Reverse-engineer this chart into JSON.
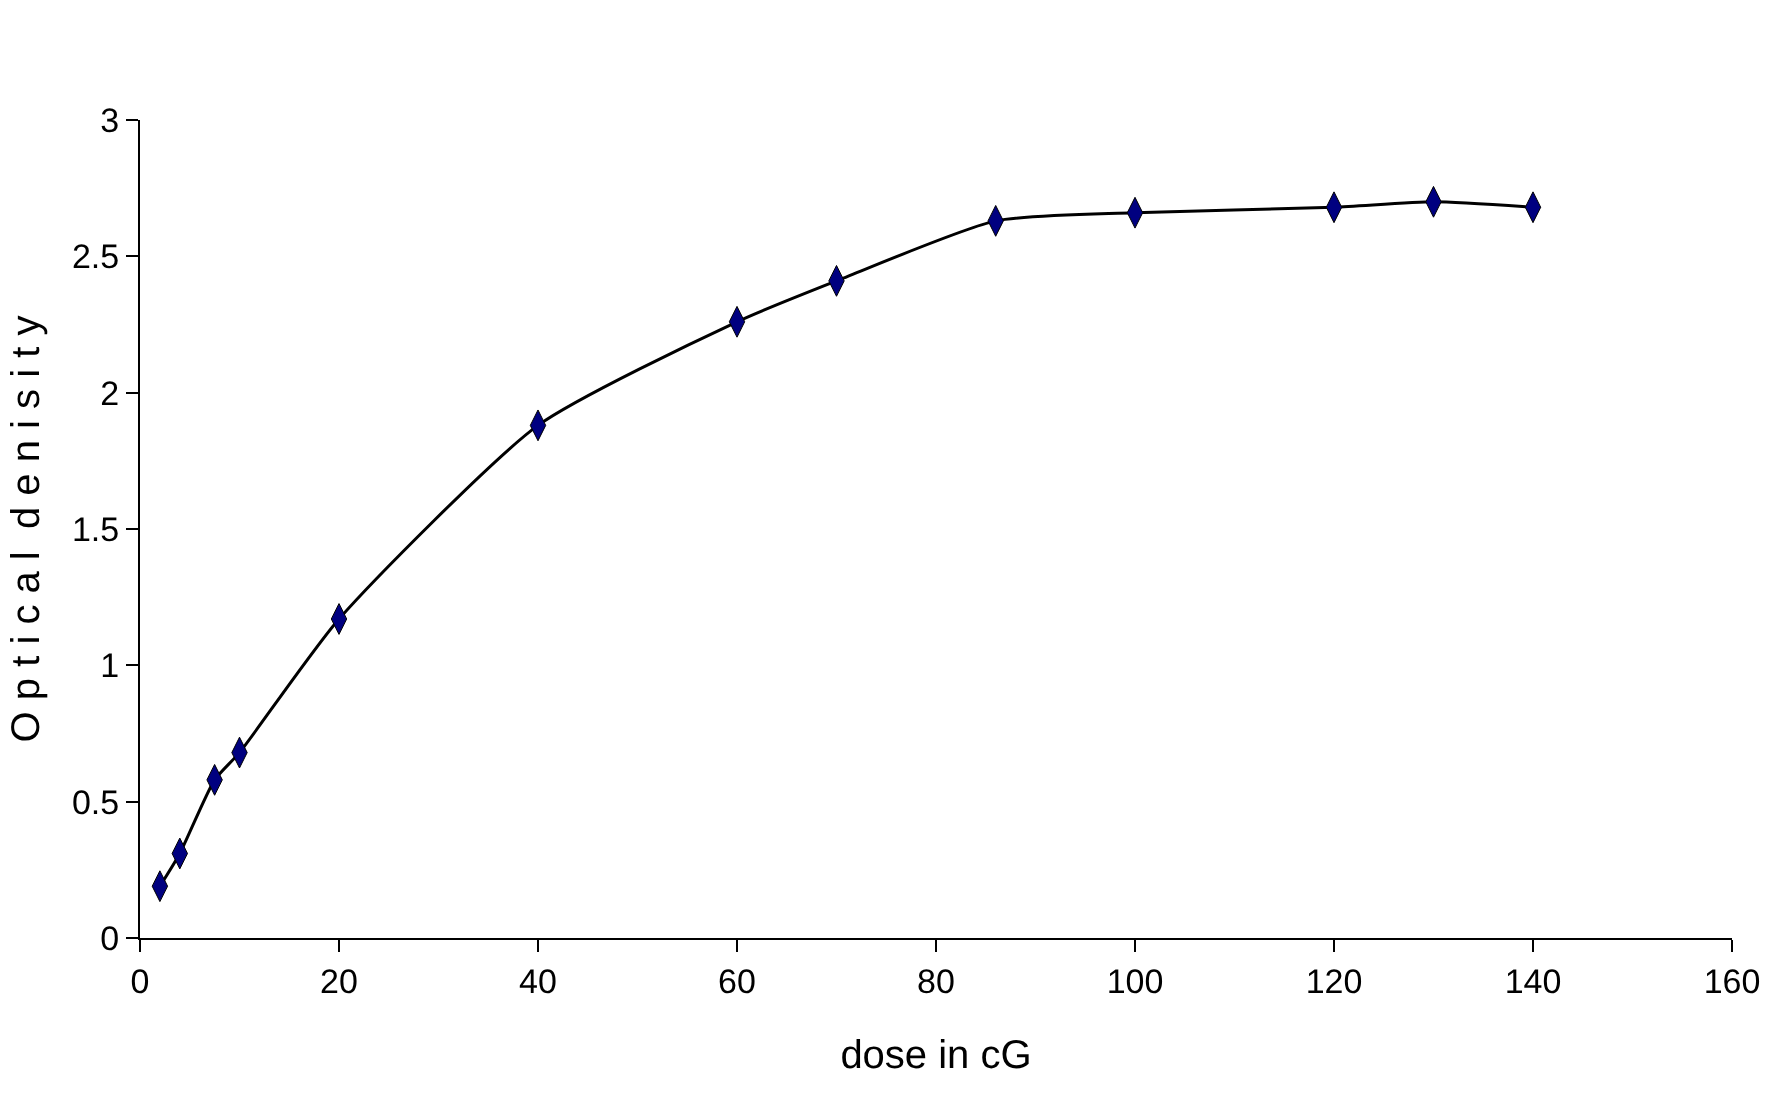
{
  "chart_data": {
    "type": "line",
    "xlabel": "dose in cG",
    "ylabel": "O p t i c a l  d e n i s i t y",
    "x": [
      2,
      4,
      7.5,
      10,
      20,
      40,
      60,
      70,
      86,
      100,
      120,
      130,
      140
    ],
    "series": [
      {
        "color": "#000080",
        "values": [
          0.19,
          0.31,
          0.58,
          0.68,
          1.17,
          1.88,
          2.26,
          2.41,
          2.63,
          2.66,
          2.68,
          2.7,
          2.68
        ]
      }
    ],
    "xlim": [
      0,
      160
    ],
    "xticks": [
      0,
      20,
      40,
      60,
      80,
      100,
      120,
      140,
      160
    ],
    "ylim": [
      0,
      3
    ],
    "yticks": [
      0,
      0.5,
      1,
      1.5,
      2,
      2.5,
      3
    ],
    "marker": "diamond",
    "line_style": "solid"
  }
}
